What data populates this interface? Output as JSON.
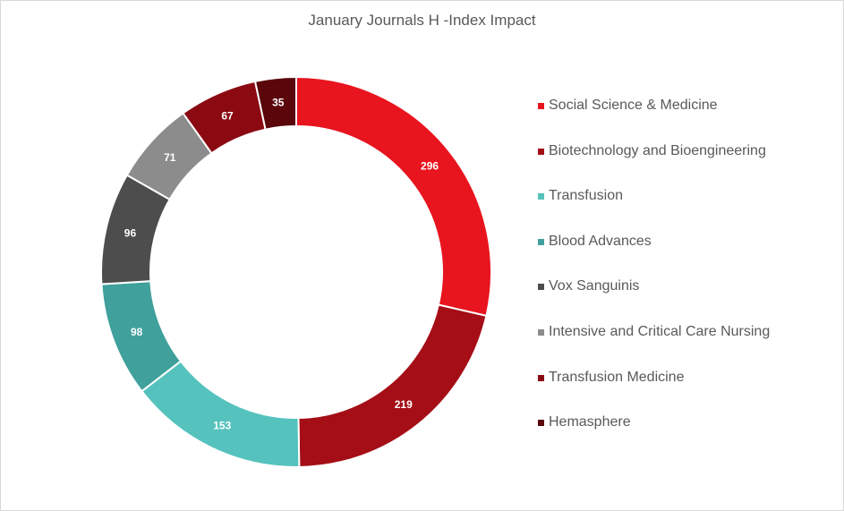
{
  "chart_data": {
    "type": "pie",
    "variant": "donut",
    "title": "January Journals H -Index Impact",
    "categories": [
      "Social Science & Medicine",
      "Biotechnology and Bioengineering",
      "Transfusion",
      "Blood Advances",
      "Vox Sanguinis",
      "Intensive and Critical Care Nursing",
      "Transfusion Medicine",
      "Hemasphere"
    ],
    "values": [
      296,
      219,
      153,
      98,
      96,
      71,
      67,
      35
    ],
    "colors": [
      "#e8141e",
      "#a50e16",
      "#55c2bd",
      "#40a09b",
      "#4d4d4d",
      "#8c8c8c",
      "#8b0a12",
      "#5a060b"
    ],
    "data_labels": true,
    "legend_position": "right"
  }
}
